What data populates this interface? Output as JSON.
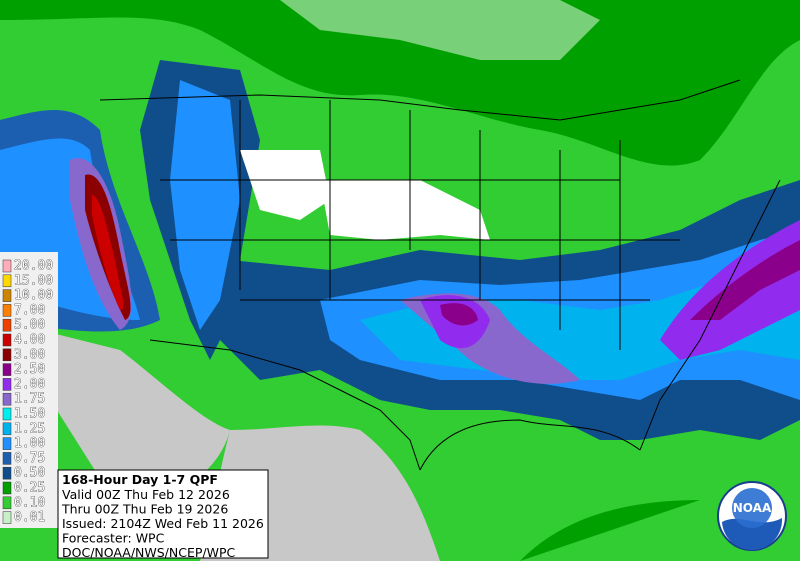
{
  "legend": [
    {
      "label": "20.00",
      "color": "#ffaeb9"
    },
    {
      "label": "15.00",
      "color": "#ffd700"
    },
    {
      "label": "10.00",
      "color": "#cd8500"
    },
    {
      "label": "7.00",
      "color": "#ff7f00"
    },
    {
      "label": "5.00",
      "color": "#ee4000"
    },
    {
      "label": "4.00",
      "color": "#cd0000"
    },
    {
      "label": "3.00",
      "color": "#8b0000"
    },
    {
      "label": "2.50",
      "color": "#8b008b"
    },
    {
      "label": "2.00",
      "color": "#912cee"
    },
    {
      "label": "1.75",
      "color": "#8968cd"
    },
    {
      "label": "1.50",
      "color": "#00eeee"
    },
    {
      "label": "1.25",
      "color": "#00b2ee"
    },
    {
      "label": "1.00",
      "color": "#1e90ff"
    },
    {
      "label": "0.75",
      "color": "#1c5fb0"
    },
    {
      "label": "0.50",
      "color": "#104e8b"
    },
    {
      "label": "0.25",
      "color": "#00a000"
    },
    {
      "label": "0.10",
      "color": "#32cd32"
    },
    {
      "label": "0.01",
      "color": "#c8f0c8"
    }
  ],
  "info": {
    "title": "168-Hour Day 1-7 QPF",
    "lines": [
      "Valid 00Z Thu Feb 12 2026",
      "Thru 00Z Thu Feb 19 2026",
      "Issued: 2104Z Wed Feb 11 2026",
      "Forecaster: WPC",
      "DOC/NOAA/NWS/NCEP/WPC"
    ]
  },
  "logo": {
    "text": "NOAA"
  }
}
